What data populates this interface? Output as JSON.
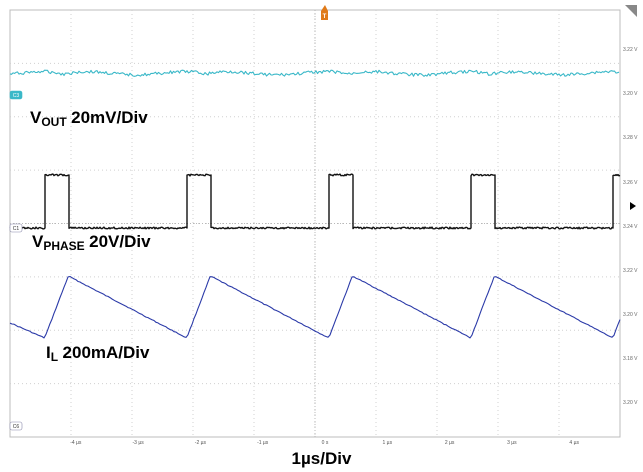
{
  "chart_data": {
    "type": "line",
    "title": "",
    "xlabel": "1µs/Div",
    "x_ticks": [
      "-4 µs",
      "-3 µs",
      "-2 µs",
      "-1 µs",
      "0 s",
      "1 µs",
      "2 µs",
      "3 µs",
      "4 µs"
    ],
    "grid": true,
    "series": [
      {
        "key": "vout",
        "channel_tag": "C3",
        "base": "V",
        "sub": "OUT",
        "scale": "20mV/Div",
        "color": "#3ab8c8",
        "shape": "ripple",
        "period_us": 2.28,
        "first_min_us": -4.18
      },
      {
        "key": "vphase",
        "channel_tag": "C1",
        "base": "V",
        "sub": "PHASE",
        "scale": "20V/Div",
        "color": "#111111",
        "shape": "pulse",
        "period_us": 2.28,
        "pulse_width_us": 0.38,
        "first_rise_us": -4.5
      },
      {
        "key": "il",
        "channel_tag": "C6",
        "base": "I",
        "sub": "L",
        "scale": "200mA/Div",
        "color": "#2b3aa8",
        "shape": "sawtooth",
        "period_us": 2.28,
        "rise_us": 0.38,
        "first_min_us": -4.5
      }
    ],
    "right_scale_labels": [
      "3.22 V",
      "3.20 V",
      "3.28 V",
      "3.26 V",
      "3.24 V",
      "3.22 V",
      "3.20 V",
      "3.18 V",
      "3.20 V"
    ]
  },
  "trigger": {
    "marker": "T"
  }
}
